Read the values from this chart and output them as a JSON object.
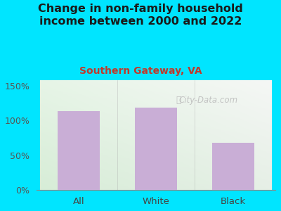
{
  "title": "Change in non-family household\nincome between 2000 and 2022",
  "subtitle": "Southern Gateway, VA",
  "categories": [
    "All",
    "White",
    "Black"
  ],
  "values": [
    113,
    118,
    68
  ],
  "bar_color": "#c9aed6",
  "title_color": "#1a1a1a",
  "subtitle_color": "#c0392b",
  "background_color": "#00e5ff",
  "yticks": [
    0,
    50,
    100,
    150
  ],
  "ytick_labels": [
    "0%",
    "50%",
    "100%",
    "150%"
  ],
  "ylim": [
    0,
    158
  ],
  "watermark": "City-Data.com",
  "title_fontsize": 11.5,
  "subtitle_fontsize": 10
}
